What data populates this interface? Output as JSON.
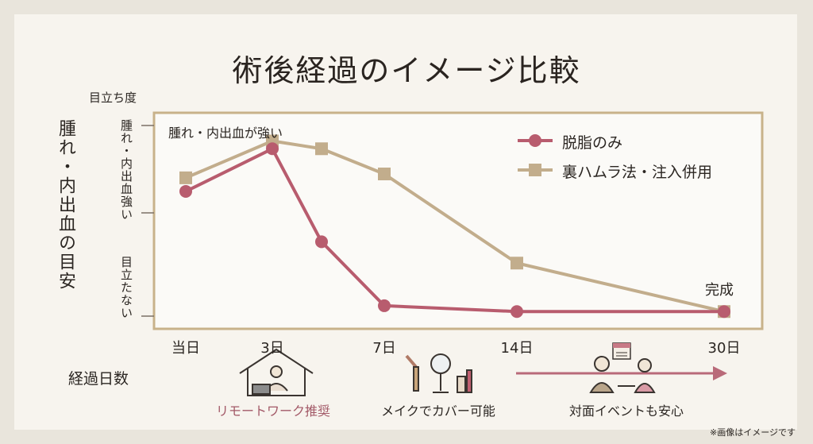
{
  "title": "術後経過のイメージ比較",
  "y_axis_caption": "目立ち度",
  "y_vertical_label": "腫れ・内出血の目安",
  "y_tick_top": "腫れ・内出血強い",
  "y_tick_bottom": "目立たない",
  "annotation_high": "腫れ・内出血が強い",
  "annotation_complete": "完成",
  "xlabel": "経過日数",
  "captions": {
    "remote": "リモートワーク推奨",
    "makeup": "メイクでカバー可能",
    "event": "対面イベントも安心"
  },
  "footnote": "※画像はイメージです",
  "icons": [
    "house-laptop-icon",
    "makeup-icon",
    "meeting-icon",
    "calendar-icon"
  ],
  "colors": {
    "series1": "#b85c6e",
    "series2": "#c2ad8c",
    "border": "#c8b28a",
    "arrow": "#b96a79",
    "caption_remote": "#a35a68"
  },
  "chart_data": {
    "type": "line",
    "x_ticks": [
      "当日",
      "3日",
      "7日",
      "14日",
      "30日"
    ],
    "x": [
      0,
      3,
      5,
      7,
      14,
      30
    ],
    "ylim": [
      0,
      100
    ],
    "series": [
      {
        "name": "脱脂のみ",
        "x": [
          0,
          3,
          5,
          7,
          14,
          30
        ],
        "values": [
          66,
          88,
          40,
          7,
          4,
          4
        ]
      },
      {
        "name": "裏ハムラ法・注入併用",
        "x": [
          0,
          3,
          5,
          7,
          14,
          30
        ],
        "values": [
          73,
          92,
          88,
          75,
          29,
          4
        ]
      }
    ]
  }
}
